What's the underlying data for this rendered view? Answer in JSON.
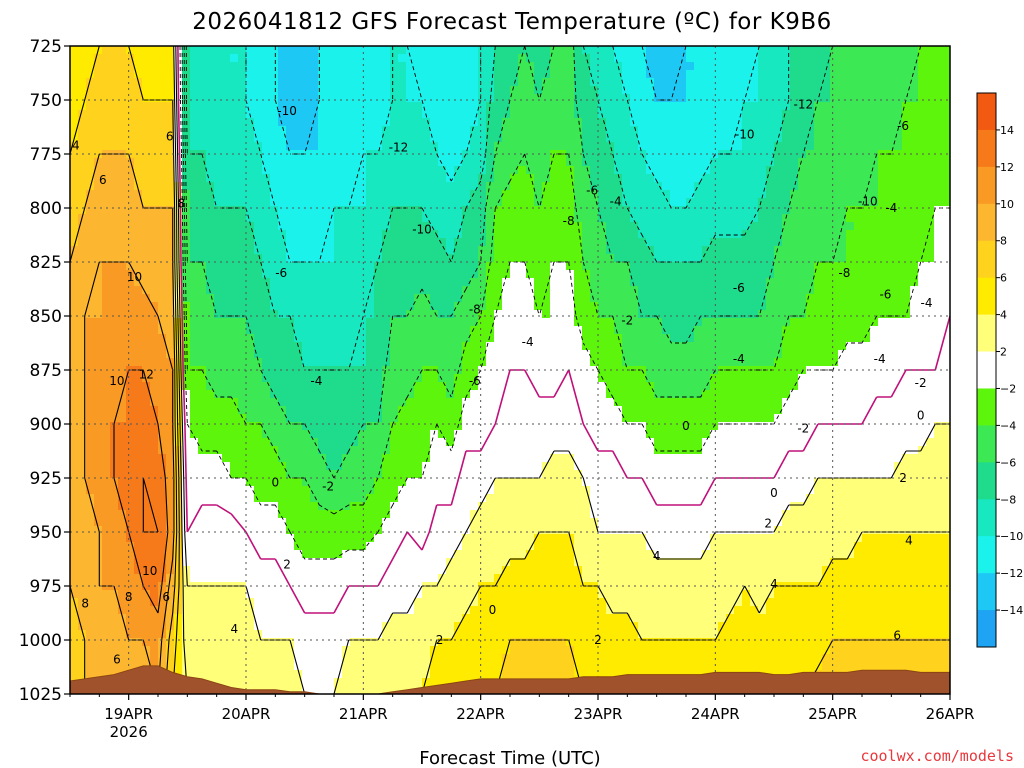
{
  "chart_data": {
    "type": "heatmap",
    "title": "2026041812 GFS Forecast Temperature (ºC) for K9B6",
    "xlabel": "Forecast Time (UTC)",
    "ylabel": "",
    "credit": "coolwx.com/models",
    "credit_color": "#e8383c",
    "y_axis": {
      "ticks": [
        "725",
        "750",
        "775",
        "800",
        "825",
        "850",
        "875",
        "900",
        "925",
        "950",
        "975",
        "1000",
        "1025"
      ],
      "range": [
        725,
        1025
      ],
      "units": "hPa"
    },
    "x_axis": {
      "ticks": [
        {
          "label": "19APR",
          "sublabel": "2026"
        },
        {
          "label": "20APR",
          "sublabel": ""
        },
        {
          "label": "21APR",
          "sublabel": ""
        },
        {
          "label": "22APR",
          "sublabel": ""
        },
        {
          "label": "23APR",
          "sublabel": ""
        },
        {
          "label": "24APR",
          "sublabel": ""
        },
        {
          "label": "25APR",
          "sublabel": ""
        },
        {
          "label": "26APR",
          "sublabel": ""
        }
      ],
      "range_days": [
        -0.5,
        7.0
      ]
    },
    "colorbar": {
      "levels": [
        14,
        12,
        10,
        8,
        6,
        4,
        2,
        -2,
        -4,
        -6,
        -8,
        -10,
        -12,
        -14
      ],
      "colors": [
        "#f25a12",
        "#f77a1a",
        "#f99a24",
        "#fcb630",
        "#ffd21e",
        "#ffeb00",
        "#ffff7a",
        "#ffffff",
        "#5ef50c",
        "#3ce854",
        "#1fdc8c",
        "#17e8bf",
        "#1cf2ec",
        "#1ec8f5",
        "#1ea4f2"
      ]
    },
    "time_columns_days": [
      -0.5,
      -0.375,
      -0.25,
      -0.125,
      0.0,
      0.125,
      0.25,
      0.375,
      0.5,
      0.625,
      0.75,
      0.875,
      1.0,
      1.125,
      1.25,
      1.375,
      1.5,
      1.625,
      1.75,
      1.875,
      2.0,
      2.125,
      2.25,
      2.375,
      2.5,
      2.625,
      2.75,
      2.875,
      3.0,
      3.125,
      3.25,
      3.375,
      3.5,
      3.625,
      3.75,
      3.875,
      4.0,
      4.125,
      4.25,
      4.375,
      4.5,
      4.625,
      4.75,
      4.875,
      5.0,
      5.125,
      5.25,
      5.375,
      5.5,
      5.625,
      5.75,
      5.875,
      6.0,
      6.125,
      6.25,
      6.375,
      6.5,
      6.625,
      6.75,
      6.875,
      7.0
    ],
    "temp_profile_note": "Temperature (ºC) at levels 725..1025 hPa every 25 hPa, one row per time column",
    "temperature": [
      [
        4,
        5,
        6,
        7,
        8,
        8,
        9,
        9,
        9,
        8,
        8,
        7,
        7
      ],
      [
        5,
        6,
        7,
        8,
        9,
        10,
        10,
        10,
        10,
        9,
        9,
        8,
        8
      ],
      [
        6,
        7,
        8,
        9,
        10,
        10,
        11,
        11,
        11,
        10,
        10,
        9,
        9
      ],
      [
        6,
        7,
        8,
        9,
        10,
        11,
        11,
        12,
        12,
        11,
        10,
        9,
        9
      ],
      [
        6,
        7,
        8,
        9,
        10,
        11,
        12,
        12,
        13,
        12,
        11,
        10,
        9
      ],
      [
        5,
        6,
        7,
        8,
        9,
        11,
        12,
        13,
        14,
        14,
        12,
        10,
        9
      ],
      [
        5,
        6,
        7,
        8,
        9,
        10,
        11,
        12,
        13,
        14,
        13,
        11,
        10
      ],
      [
        5,
        6,
        7,
        8,
        8,
        9,
        10,
        10,
        11,
        11,
        9,
        7,
        6
      ],
      [
        -9,
        -9,
        -8,
        -7,
        -6,
        -5,
        -4,
        -2,
        -1,
        0,
        2,
        3,
        4
      ],
      [
        -9,
        -9,
        -8,
        -7,
        -6,
        -5,
        -4,
        -3,
        -1,
        1,
        2,
        3,
        4
      ],
      [
        -9,
        -9,
        -9,
        -8,
        -7,
        -6,
        -5,
        -3,
        -1,
        1,
        2,
        3,
        4
      ],
      [
        -10,
        -10,
        -9,
        -8,
        -7,
        -6,
        -5,
        -3,
        -2,
        1,
        2,
        3,
        4
      ],
      [
        -10,
        -10,
        -9,
        -8,
        -7,
        -6,
        -5,
        -4,
        -2,
        0,
        2,
        3,
        4
      ],
      [
        -11,
        -11,
        -10,
        -9,
        -8,
        -7,
        -6,
        -4,
        -3,
        -1,
        1,
        2,
        3
      ],
      [
        -12,
        -12,
        -11,
        -10,
        -9,
        -8,
        -7,
        -5,
        -3,
        -1,
        1,
        2,
        3
      ],
      [
        -13,
        -13,
        -12,
        -11,
        -10,
        -8,
        -7,
        -6,
        -4,
        -2,
        0,
        2,
        3
      ],
      [
        -13,
        -13,
        -12,
        -11,
        -10,
        -9,
        -8,
        -6,
        -4,
        -3,
        -1,
        1,
        2
      ],
      [
        -12,
        -12,
        -12,
        -11,
        -10,
        -9,
        -8,
        -7,
        -5,
        -3,
        -1,
        1,
        2
      ],
      [
        -12,
        -12,
        -11,
        -10,
        -10,
        -9,
        -8,
        -7,
        -6,
        -3,
        -1,
        1,
        2
      ],
      [
        -11,
        -11,
        -11,
        -10,
        -9,
        -9,
        -8,
        -7,
        -5,
        -3,
        0,
        2,
        3
      ],
      [
        -11,
        -11,
        -10,
        -10,
        -9,
        -8,
        -8,
        -6,
        -5,
        -3,
        0,
        2,
        4
      ],
      [
        -11,
        -11,
        -10,
        -9,
        -8,
        -8,
        -7,
        -6,
        -4,
        -2,
        0,
        2,
        4
      ],
      [
        -10,
        -10,
        -9,
        -8,
        -7,
        -6,
        -5,
        -4,
        -3,
        -1,
        1,
        3,
        4
      ],
      [
        -10,
        -10,
        -9,
        -8,
        -7,
        -6,
        -5,
        -3,
        -2,
        0,
        1,
        3,
        4
      ],
      [
        -11,
        -10,
        -9,
        -8,
        -7,
        -5,
        -4,
        -3,
        -2,
        -1,
        2,
        3,
        4
      ],
      [
        -12,
        -11,
        -10,
        -9,
        -7,
        -6,
        -4,
        -2,
        -1,
        1,
        2,
        4,
        5
      ],
      [
        -12,
        -12,
        -11,
        -9,
        -8,
        -6,
        -5,
        -3,
        -1,
        1,
        3,
        4,
        5
      ],
      [
        -11,
        -11,
        -10,
        -8,
        -7,
        -5,
        -3,
        -1,
        1,
        2,
        3,
        5,
        6
      ],
      [
        -10,
        -10,
        -9,
        -7,
        -6,
        -4,
        -2,
        -1,
        1,
        3,
        4,
        5,
        6
      ],
      [
        -8,
        -7,
        -6,
        -4,
        -3,
        -2,
        -1,
        0,
        2,
        3,
        4,
        5,
        6
      ],
      [
        -7,
        -6,
        -5,
        -3,
        -2,
        -1,
        0,
        1,
        2,
        3,
        5,
        6,
        7
      ],
      [
        -6,
        -5,
        -4,
        -3,
        -2,
        -1,
        0,
        1,
        2,
        3,
        5,
        6,
        7
      ],
      [
        -7,
        -6,
        -5,
        -4,
        -3,
        -2,
        -1,
        1,
        2,
        4,
        5,
        6,
        7
      ],
      [
        -6,
        -5,
        -4,
        -3,
        -2,
        -2,
        -1,
        1,
        3,
        4,
        5,
        6,
        7
      ],
      [
        -5,
        -5,
        -4,
        -3,
        -2,
        -1,
        0,
        1,
        3,
        4,
        5,
        6,
        7
      ],
      [
        -8,
        -7,
        -6,
        -5,
        -4,
        -3,
        -1,
        0,
        2,
        3,
        4,
        5,
        6
      ],
      [
        -9,
        -8,
        -7,
        -6,
        -5,
        -4,
        -2,
        -1,
        1,
        2,
        4,
        5,
        6
      ],
      [
        -10,
        -9,
        -8,
        -7,
        -6,
        -4,
        -3,
        -1,
        1,
        2,
        3,
        5,
        6
      ],
      [
        -11,
        -10,
        -9,
        -8,
        -6,
        -5,
        -4,
        -2,
        0,
        2,
        3,
        5,
        6
      ],
      [
        -12,
        -11,
        -10,
        -9,
        -7,
        -6,
        -4,
        -2,
        0,
        2,
        3,
        4,
        6
      ],
      [
        -13,
        -12,
        -11,
        -9,
        -8,
        -6,
        -5,
        -3,
        -1,
        1,
        3,
        4,
        5
      ],
      [
        -13,
        -12,
        -11,
        -10,
        -8,
        -7,
        -5,
        -3,
        -1,
        1,
        3,
        4,
        5
      ],
      [
        -12,
        -12,
        -11,
        -10,
        -8,
        -7,
        -5,
        -3,
        -1,
        1,
        3,
        4,
        5
      ],
      [
        -12,
        -12,
        -11,
        -9,
        -8,
        -6,
        -5,
        -3,
        -1,
        1,
        3,
        4,
        5
      ],
      [
        -12,
        -11,
        -10,
        -9,
        -7,
        -6,
        -4,
        -2,
        0,
        2,
        3,
        4,
        6
      ],
      [
        -11,
        -11,
        -10,
        -9,
        -7,
        -6,
        -4,
        -2,
        0,
        2,
        3,
        5,
        6
      ],
      [
        -11,
        -10,
        -10,
        -9,
        -7,
        -6,
        -4,
        -2,
        0,
        2,
        4,
        5,
        6
      ],
      [
        -10,
        -10,
        -9,
        -8,
        -7,
        -6,
        -4,
        -2,
        0,
        2,
        3,
        5,
        6
      ],
      [
        -9,
        -9,
        -8,
        -7,
        -6,
        -5,
        -4,
        -2,
        0,
        2,
        4,
        5,
        6
      ],
      [
        -8,
        -8,
        -7,
        -6,
        -5,
        -4,
        -3,
        -1,
        1,
        3,
        4,
        5,
        6
      ],
      [
        -7,
        -7,
        -6,
        -5,
        -5,
        -4,
        -2,
        -1,
        1,
        3,
        4,
        5,
        6
      ],
      [
        -7,
        -6,
        -6,
        -5,
        -4,
        -3,
        -2,
        0,
        2,
        3,
        4,
        5,
        7
      ],
      [
        -6,
        -6,
        -5,
        -5,
        -4,
        -3,
        -2,
        0,
        2,
        3,
        5,
        6,
        7
      ],
      [
        -6,
        -5,
        -5,
        -4,
        -4,
        -3,
        -1,
        0,
        2,
        3,
        5,
        6,
        7
      ],
      [
        -6,
        -5,
        -5,
        -4,
        -4,
        -3,
        -1,
        0,
        2,
        4,
        5,
        6,
        7
      ],
      [
        -5,
        -5,
        -4,
        -4,
        -3,
        -2,
        -1,
        1,
        2,
        4,
        5,
        6,
        7
      ],
      [
        -5,
        -5,
        -4,
        -4,
        -3,
        -2,
        -1,
        1,
        2,
        4,
        5,
        6,
        7
      ],
      [
        -5,
        -4,
        -4,
        -3,
        -3,
        -2,
        0,
        1,
        3,
        4,
        5,
        6,
        7
      ],
      [
        -4,
        -4,
        -3,
        -3,
        -2,
        -1,
        0,
        1,
        3,
        4,
        5,
        6,
        7
      ],
      [
        -4,
        -3,
        -3,
        -2,
        -2,
        -1,
        0,
        2,
        3,
        4,
        5,
        6,
        7
      ],
      [
        -4,
        -3,
        -3,
        -2,
        -1,
        0,
        1,
        2,
        3,
        4,
        5,
        6,
        7
      ]
    ],
    "ground_pressure_hPa": [
      1019,
      1018,
      1017,
      1016,
      1014,
      1012,
      1012,
      1015,
      1017,
      1018,
      1020,
      1022,
      1023,
      1023,
      1023,
      1024,
      1024,
      1025,
      1025,
      1025,
      1025,
      1025,
      1024,
      1023,
      1022,
      1021,
      1020,
      1019,
      1018,
      1018,
      1018,
      1018,
      1018,
      1018,
      1018,
      1017,
      1017,
      1017,
      1016,
      1016,
      1016,
      1016,
      1016,
      1016,
      1015,
      1015,
      1015,
      1015,
      1016,
      1016,
      1015,
      1015,
      1015,
      1015,
      1014,
      1014,
      1014,
      1014,
      1015,
      1015,
      1015
    ],
    "contour_labels": [
      {
        "text": "4",
        "t": -0.45,
        "p": 771
      },
      {
        "text": "6",
        "t": -0.22,
        "p": 787
      },
      {
        "text": "6",
        "t": 0.35,
        "p": 767
      },
      {
        "text": "8",
        "t": 0.45,
        "p": 798
      },
      {
        "text": "10",
        "t": 0.05,
        "p": 832
      },
      {
        "text": "10",
        "t": -0.1,
        "p": 880
      },
      {
        "text": "12",
        "t": 0.15,
        "p": 877
      },
      {
        "text": "10",
        "t": 0.18,
        "p": 968
      },
      {
        "text": "8",
        "t": -0.37,
        "p": 983
      },
      {
        "text": "8",
        "t": 0.0,
        "p": 980
      },
      {
        "text": "6",
        "t": 0.32,
        "p": 980
      },
      {
        "text": "6",
        "t": -0.1,
        "p": 1009
      },
      {
        "text": "-10",
        "t": 1.35,
        "p": 755
      },
      {
        "text": "-12",
        "t": 2.3,
        "p": 772
      },
      {
        "text": "-10",
        "t": 2.5,
        "p": 810
      },
      {
        "text": "-8",
        "t": 2.95,
        "p": 847
      },
      {
        "text": "-6",
        "t": 1.3,
        "p": 830
      },
      {
        "text": "-4",
        "t": 1.6,
        "p": 880
      },
      {
        "text": "-6",
        "t": 2.95,
        "p": 880
      },
      {
        "text": "-4",
        "t": 3.4,
        "p": 862
      },
      {
        "text": "-6",
        "t": 3.95,
        "p": 792
      },
      {
        "text": "-8",
        "t": 3.75,
        "p": 806
      },
      {
        "text": "-4",
        "t": 4.15,
        "p": 797
      },
      {
        "text": "-2",
        "t": 4.25,
        "p": 852
      },
      {
        "text": "-10",
        "t": 5.25,
        "p": 766
      },
      {
        "text": "-12",
        "t": 5.75,
        "p": 752
      },
      {
        "text": "-10",
        "t": 6.3,
        "p": 797
      },
      {
        "text": "-8",
        "t": 6.1,
        "p": 830
      },
      {
        "text": "-6",
        "t": 6.6,
        "p": 762
      },
      {
        "text": "-4",
        "t": 6.5,
        "p": 800
      },
      {
        "text": "-6",
        "t": 5.2,
        "p": 837
      },
      {
        "text": "-6",
        "t": 6.45,
        "p": 840
      },
      {
        "text": "-4",
        "t": 6.8,
        "p": 844
      },
      {
        "text": "-4",
        "t": 5.2,
        "p": 870
      },
      {
        "text": "-4",
        "t": 6.4,
        "p": 870
      },
      {
        "text": "-2",
        "t": 5.75,
        "p": 902
      },
      {
        "text": "-2",
        "t": 6.75,
        "p": 881
      },
      {
        "text": "0",
        "t": 1.25,
        "p": 927
      },
      {
        "text": "-2",
        "t": 1.7,
        "p": 929
      },
      {
        "text": "0",
        "t": 4.75,
        "p": 901
      },
      {
        "text": "0",
        "t": 6.75,
        "p": 896
      },
      {
        "text": "0",
        "t": 5.5,
        "p": 932
      },
      {
        "text": "0",
        "t": 3.1,
        "p": 986
      },
      {
        "text": "2",
        "t": 1.35,
        "p": 965
      },
      {
        "text": "2",
        "t": 2.65,
        "p": 1000
      },
      {
        "text": "2",
        "t": 4.0,
        "p": 1000
      },
      {
        "text": "2",
        "t": 5.45,
        "p": 946
      },
      {
        "text": "2",
        "t": 6.6,
        "p": 925
      },
      {
        "text": "4",
        "t": 0.9,
        "p": 995
      },
      {
        "text": "4",
        "t": 4.5,
        "p": 961
      },
      {
        "text": "4",
        "t": 5.5,
        "p": 974
      },
      {
        "text": "4",
        "t": 6.65,
        "p": 954
      },
      {
        "text": "6",
        "t": 6.55,
        "p": 998
      }
    ]
  }
}
